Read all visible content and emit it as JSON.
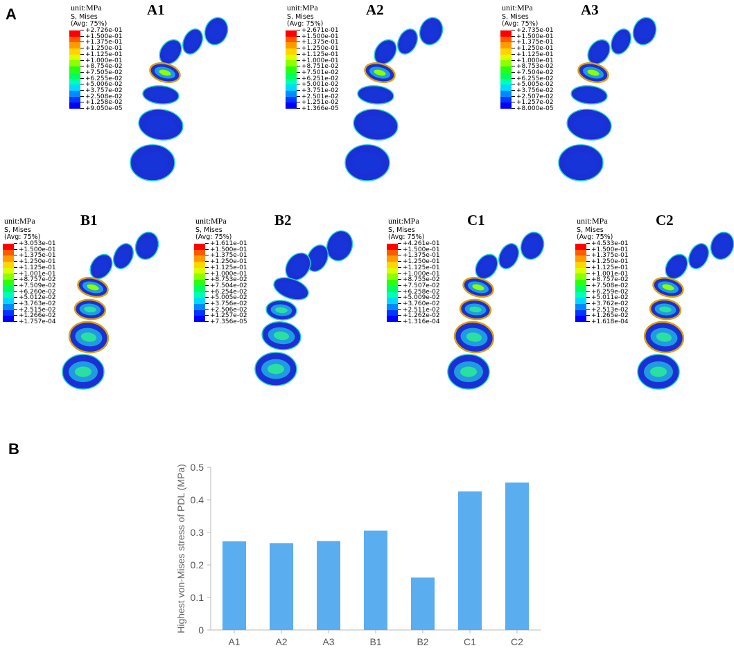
{
  "panels": {
    "a": "A",
    "b": "B"
  },
  "legend_colors": [
    "#ff0000",
    "#ff5a00",
    "#ff9b00",
    "#ffd500",
    "#dcff00",
    "#8cff00",
    "#2aff10",
    "#00ff5e",
    "#00ffb2",
    "#00d9ff",
    "#0089ff",
    "#0036ff",
    "#0000ff"
  ],
  "models": [
    {
      "id": "A1",
      "label": "A1",
      "unit": "unit:MPa",
      "s_mises": "S, Mises",
      "avg": "(Avg: 75%)",
      "ticks": [
        "+2.726e-01",
        "+1.500e-01",
        "+1.375e-01",
        "+1.250e-01",
        "+1.125e-01",
        "+1.000e-01",
        "+8.754e-02",
        "+7.505e-02",
        "+6.255e-02",
        "+5.006e-02",
        "+3.757e-02",
        "+2.508e-02",
        "+1.258e-02",
        "+9.050e-05"
      ]
    },
    {
      "id": "A2",
      "label": "A2",
      "unit": "unit:MPa",
      "s_mises": "S, Mises",
      "avg": "(Avg: 75%)",
      "ticks": [
        "+2.671e-01",
        "+1.500e-01",
        "+1.375e-01",
        "+1.250e-01",
        "+1.125e-01",
        "+1.000e-01",
        "+8.751e-02",
        "+7.501e-02",
        "+6.251e-02",
        "+5.001e-02",
        "+3.751e-02",
        "+2.501e-02",
        "+1.251e-02",
        "+1.366e-05"
      ]
    },
    {
      "id": "A3",
      "label": "A3",
      "unit": "unit:MPa",
      "s_mises": "S, Mises",
      "avg": "(Avg: 75%)",
      "ticks": [
        "+2.735e-01",
        "+1.500e-01",
        "+1.375e-01",
        "+1.250e-01",
        "+1.125e-01",
        "+1.000e-01",
        "+8.753e-02",
        "+7.504e-02",
        "+6.255e-02",
        "+5.005e-02",
        "+3.756e-02",
        "+2.507e-02",
        "+1.257e-02",
        "+8.000e-05"
      ]
    },
    {
      "id": "B1",
      "label": "B1",
      "unit": "unit:MPa",
      "s_mises": "S, Mises",
      "avg": "(Avg: 75%)",
      "ticks": [
        "+3.053e-01",
        "+1.500e-01",
        "+1.375e-01",
        "+1.250e-01",
        "+1.125e-01",
        "+1.001e-01",
        "+8.757e-02",
        "+7.509e-02",
        "+6.260e-02",
        "+5.012e-02",
        "+3.763e-02",
        "+2.515e-02",
        "+1.266e-02",
        "+1.757e-04"
      ]
    },
    {
      "id": "B2",
      "label": "B2",
      "unit": "unit:MPa",
      "s_mises": "S, Mises",
      "avg": "(Avg: 75%)",
      "ticks": [
        "+1.611e-01",
        "+1.500e-01",
        "+1.375e-01",
        "+1.250e-01",
        "+1.125e-01",
        "+1.000e-01",
        "+8.753e-02",
        "+7.504e-02",
        "+6.254e-02",
        "+5.005e-02",
        "+3.756e-02",
        "+2.506e-02",
        "+1.257e-02",
        "+7.356e-05"
      ]
    },
    {
      "id": "C1",
      "label": "C1",
      "unit": "unit:MPa",
      "s_mises": "S, Mises",
      "avg": "(Avg: 75%)",
      "ticks": [
        "+4.261e-01",
        "+1.500e-01",
        "+1.375e-01",
        "+1.250e-01",
        "+1.125e-01",
        "+1.000e-01",
        "+8.755e-02",
        "+7.507e-02",
        "+6.258e-02",
        "+5.009e-02",
        "+3.760e-02",
        "+2.511e-02",
        "+1.262e-02",
        "+1.316e-04"
      ]
    },
    {
      "id": "C2",
      "label": "C2",
      "unit": "unit:MPa",
      "s_mises": "S, Mises",
      "avg": "(Avg: 75%)",
      "ticks": [
        "+4.533e-01",
        "+1.500e-01",
        "+1.375e-01",
        "+1.250e-01",
        "+1.125e-01",
        "+1.001e-01",
        "+8.757e-02",
        "+7.508e-02",
        "+6.259e-02",
        "+5.011e-02",
        "+3.762e-02",
        "+2.513e-02",
        "+1.265e-02",
        "+1.618e-04"
      ]
    }
  ],
  "chart_data": {
    "type": "bar",
    "title": "",
    "xlabel": "",
    "ylabel": "Highest von-Mises stress of PDL (MPa)",
    "categories": [
      "A1",
      "A2",
      "A3",
      "B1",
      "B2",
      "C1",
      "C2"
    ],
    "values": [
      0.2726,
      0.2671,
      0.2735,
      0.3053,
      0.1611,
      0.4261,
      0.4533
    ],
    "ylim": [
      0,
      0.5
    ],
    "yticks": [
      "0",
      "0.1",
      "0.2",
      "0.3",
      "0.4",
      "0.5"
    ],
    "bar_color": "#5aaef0",
    "grid": false
  }
}
